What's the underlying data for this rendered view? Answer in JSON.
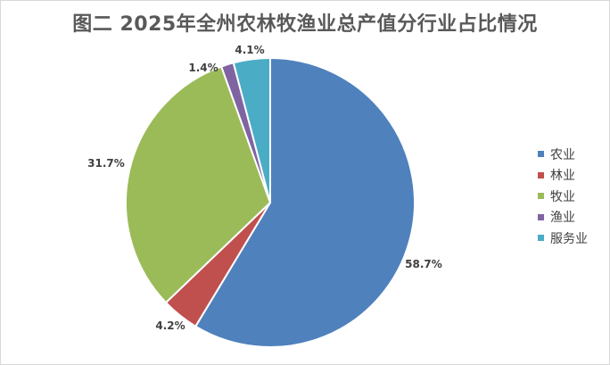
{
  "chart_data": {
    "type": "pie",
    "title": "图二  2025年全州农林牧渔业总产值分行业占比情况",
    "categories": [
      "农业",
      "林业",
      "牧业",
      "渔业",
      "服务业"
    ],
    "values": [
      58.7,
      4.2,
      31.7,
      1.4,
      4.1
    ],
    "value_labels": [
      "58.7%",
      "4.2%",
      "31.7%",
      "1.4%",
      "4.1%"
    ],
    "colors": [
      "#4f81bd",
      "#c0504d",
      "#9bbb59",
      "#8064a2",
      "#4bacc6"
    ],
    "start": "12 o'clock",
    "direction": "clockwise",
    "legend_position": "right"
  }
}
